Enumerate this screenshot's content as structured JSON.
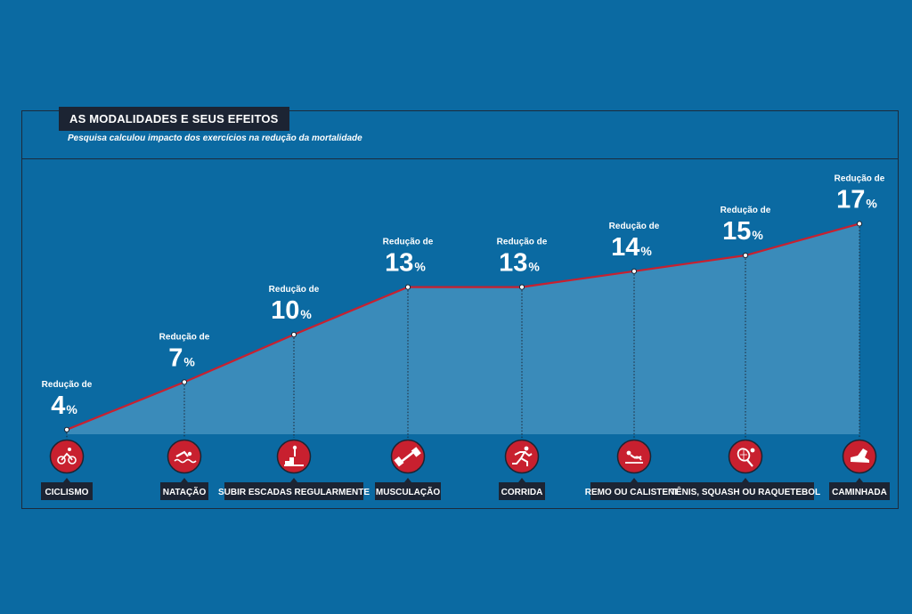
{
  "title": "AS MODALIDADES E SEUS EFEITOS",
  "subtitle": "Pesquisa calculou impacto dos exercícios na redução da mortalidade",
  "colors": {
    "background": "#0b6aa2",
    "area": "#3a8bba",
    "line": "#c8202f",
    "icon_circle": "#c8202f",
    "label_box": "#1c2433"
  },
  "chart_data": {
    "type": "area",
    "title": "AS MODALIDADES E SEUS EFEITOS",
    "subtitle": "Pesquisa calculou impacto dos exercícios na redução da mortalidade",
    "value_prefix": "Redução de",
    "value_suffix": "%",
    "categories": [
      "CICLISMO",
      "NATAÇÃO",
      "SUBIR ESCADAS REGULARMENTE",
      "MUSCULAÇÃO",
      "CORRIDA",
      "REMO OU CALISTENIA",
      "TÊNIS, SQUASH OU RAQUETEBOL",
      "CAMINHADA"
    ],
    "values": [
      4,
      7,
      10,
      13,
      13,
      14,
      15,
      17
    ],
    "icons": [
      "cyclist-icon",
      "swimmer-icon",
      "stairs-icon",
      "dumbbell-icon",
      "runner-icon",
      "calisthenics-icon",
      "racket-icon",
      "shoe-icon"
    ],
    "grid": false,
    "legend": "none"
  }
}
